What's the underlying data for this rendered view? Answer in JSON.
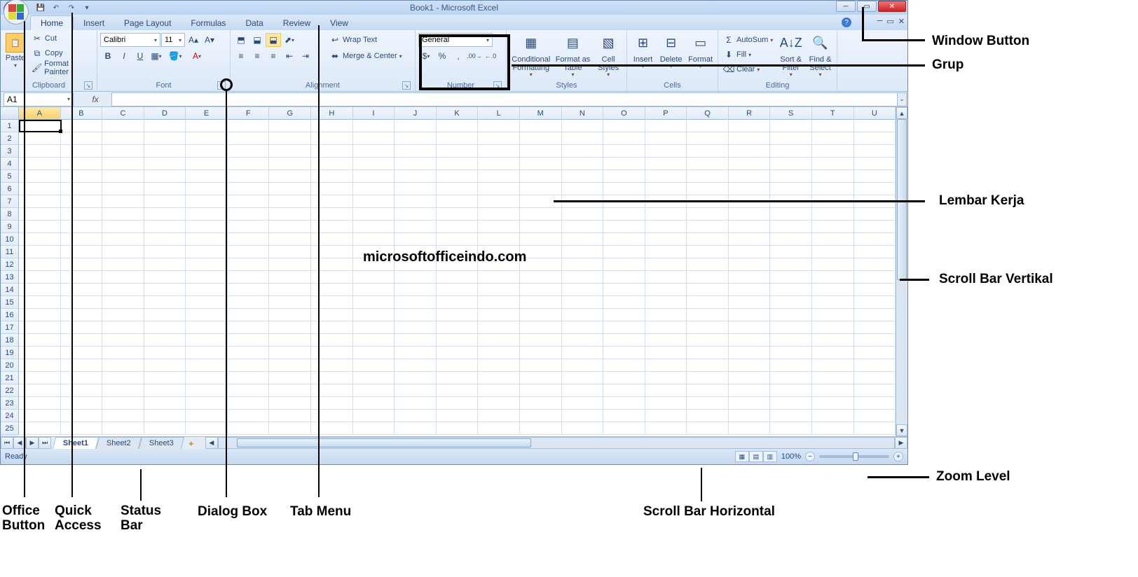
{
  "title": "Book1 - Microsoft Excel",
  "qat": {
    "save": "💾",
    "undo": "↶",
    "redo": "↷",
    "custom": "▾"
  },
  "tabs": [
    "Home",
    "Insert",
    "Page Layout",
    "Formulas",
    "Data",
    "Review",
    "View"
  ],
  "active_tab": "Home",
  "ribbon": {
    "clipboard": {
      "label": "Clipboard",
      "paste": "Paste",
      "cut": "Cut",
      "copy": "Copy",
      "format_painter": "Format Painter"
    },
    "font": {
      "label": "Font",
      "name": "Calibri",
      "size": "11",
      "bold": "B",
      "italic": "I",
      "underline": "U"
    },
    "alignment": {
      "label": "Alignment",
      "wrap": "Wrap Text",
      "merge": "Merge & Center"
    },
    "number": {
      "label": "Number",
      "format": "General"
    },
    "styles": {
      "label": "Styles",
      "conditional": "Conditional Formatting",
      "format_table": "Format as Table",
      "cell_styles": "Cell Styles"
    },
    "cells": {
      "label": "Cells",
      "insert": "Insert",
      "delete": "Delete",
      "format": "Format"
    },
    "editing": {
      "label": "Editing",
      "autosum": "AutoSum",
      "fill": "Fill",
      "clear": "Clear",
      "sort": "Sort & Filter",
      "find": "Find & Select"
    }
  },
  "name_box": "A1",
  "columns": [
    "A",
    "B",
    "C",
    "D",
    "E",
    "F",
    "G",
    "H",
    "I",
    "J",
    "K",
    "L",
    "M",
    "N",
    "O",
    "P",
    "Q",
    "R",
    "S",
    "T",
    "U"
  ],
  "rows": [
    "1",
    "2",
    "3",
    "4",
    "5",
    "6",
    "7",
    "8",
    "9",
    "10",
    "11",
    "12",
    "13",
    "14",
    "15",
    "16",
    "17",
    "18",
    "19",
    "20",
    "21",
    "22",
    "23",
    "24",
    "25"
  ],
  "sheets": [
    "Sheet1",
    "Sheet2",
    "Sheet3"
  ],
  "status": "Ready",
  "zoom": "100%",
  "watermark": "microsoftofficeindo.com",
  "annotations": {
    "window_button": "Window Button",
    "grup": "Grup",
    "lembar_kerja": "Lembar Kerja",
    "scroll_v": "Scroll Bar Vertikal",
    "zoom_level": "Zoom Level",
    "scroll_h": "Scroll Bar Horizontal",
    "tab_menu": "Tab Menu",
    "dialog_box": "Dialog Box",
    "status_bar": "Status Bar",
    "quick_access": "Quick Access",
    "office_button": "Office Button"
  }
}
